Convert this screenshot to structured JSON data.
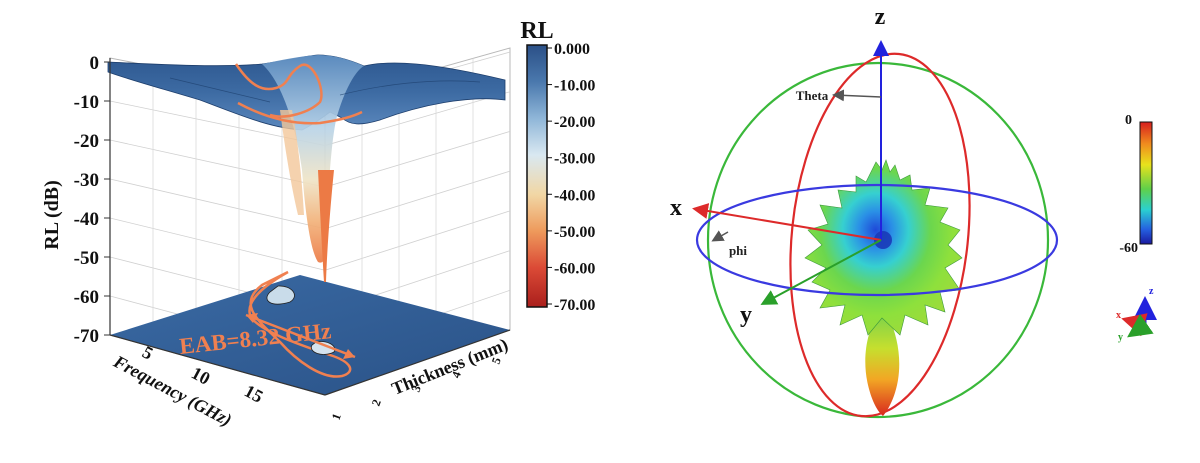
{
  "chart_data": [
    {
      "type": "surface3d",
      "title": "",
      "zlabel": "RL (dB)",
      "xlabel": "Frequency (GHz)",
      "ylabel": "Thickness (mm)",
      "zlim": [
        -70,
        0
      ],
      "z_ticks": [
        "0",
        "-10",
        "-20",
        "-30",
        "-40",
        "-50",
        "-60",
        "-70"
      ],
      "x_ticks": [
        "5",
        "10",
        "15"
      ],
      "y_ticks": [
        "1",
        "2",
        "3",
        "4",
        "5"
      ],
      "colorbar": {
        "title": "RL",
        "ticks": [
          "0.000",
          "-10.00",
          "-20.00",
          "-30.00",
          "-40.00",
          "-50.00",
          "-60.00",
          "-70.00"
        ],
        "colors": [
          "#2b5087",
          "#4a78ad",
          "#8fb6d8",
          "#d9e8f1",
          "#f1d7a5",
          "#ee9a5c",
          "#db4a36",
          "#aa1f1c"
        ]
      },
      "annotation": "EAB=8.32 GHz",
      "min_rl": -62,
      "accent_color": "#f08050"
    },
    {
      "type": "radiation-pattern-3d",
      "axes": {
        "z": "z",
        "x": "x",
        "y": "y"
      },
      "angle_labels": {
        "theta": "Theta",
        "phi": "phi"
      },
      "colorbar": {
        "ticks": [
          "0",
          "-60"
        ],
        "colors": [
          "#d71f1f",
          "#f08c1e",
          "#e8e21c",
          "#5fd04a",
          "#2ad0d0",
          "#2560e0",
          "#1a1aa0"
        ]
      },
      "triad": {
        "z": "z",
        "x": "x",
        "y": "y"
      },
      "ring_colors": {
        "theta": "#dd2a2a",
        "phi": "#3a3ae0",
        "meridian": "#3ab83a"
      }
    }
  ]
}
